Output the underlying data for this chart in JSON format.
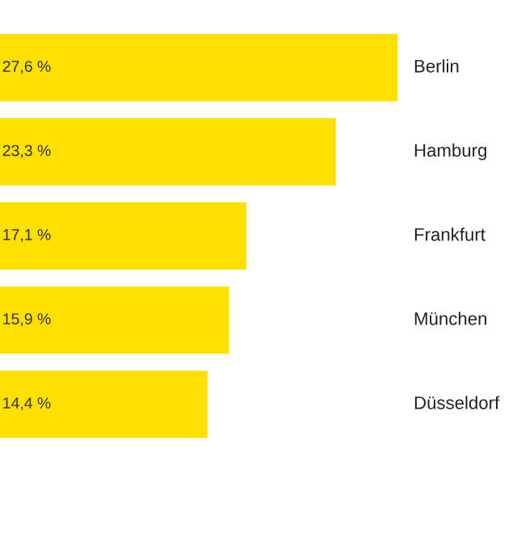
{
  "chart_data": {
    "type": "bar",
    "orientation": "horizontal",
    "categories": [
      "Berlin",
      "Hamburg",
      "Frankfurt",
      "München",
      "Düsseldorf"
    ],
    "values": [
      27.6,
      23.3,
      17.1,
      15.9,
      14.4
    ],
    "value_labels": [
      "27,6 %",
      "23,3 %",
      "17,1 %",
      "15,9 %",
      "14,4 %"
    ],
    "color": "#ffe000"
  }
}
